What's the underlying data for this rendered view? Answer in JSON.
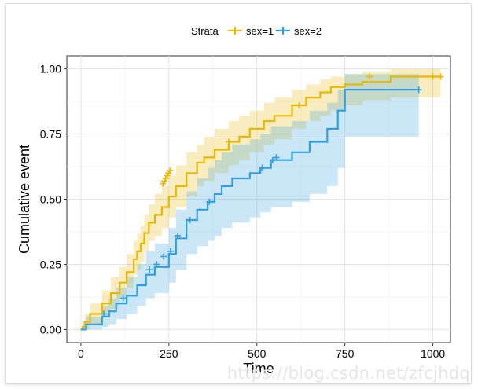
{
  "chart_data": {
    "type": "line",
    "title": "",
    "xlabel": "Time",
    "ylabel": "Cumulative event",
    "xlim": [
      -40,
      1050
    ],
    "ylim": [
      -0.05,
      1.05
    ],
    "xticks": [
      "0",
      "250",
      "500",
      "750",
      "1000"
    ],
    "xtick_values": [
      0,
      250,
      500,
      750,
      1000
    ],
    "yticks": [
      "0.00",
      "0.25",
      "0.50",
      "0.75",
      "1.00"
    ],
    "ytick_values": [
      0,
      0.25,
      0.5,
      0.75,
      1.0
    ],
    "legend": {
      "title": "Strata",
      "position": "top"
    },
    "grid": true,
    "series": [
      {
        "name": "sex=1",
        "color": "#E7B800",
        "steps": [
          [
            0,
            0
          ],
          [
            5,
            0.01
          ],
          [
            11,
            0.03
          ],
          [
            26,
            0.06
          ],
          [
            60,
            0.1
          ],
          [
            85,
            0.14
          ],
          [
            110,
            0.18
          ],
          [
            130,
            0.22
          ],
          [
            150,
            0.27
          ],
          [
            160,
            0.3
          ],
          [
            170,
            0.33
          ],
          [
            180,
            0.37
          ],
          [
            193,
            0.41
          ],
          [
            210,
            0.44
          ],
          [
            230,
            0.47
          ],
          [
            250,
            0.51
          ],
          [
            270,
            0.55
          ],
          [
            300,
            0.6
          ],
          [
            330,
            0.64
          ],
          [
            350,
            0.66
          ],
          [
            380,
            0.69
          ],
          [
            420,
            0.72
          ],
          [
            450,
            0.74
          ],
          [
            480,
            0.77
          ],
          [
            520,
            0.8
          ],
          [
            550,
            0.82
          ],
          [
            600,
            0.86
          ],
          [
            640,
            0.89
          ],
          [
            680,
            0.91
          ],
          [
            710,
            0.93
          ],
          [
            750,
            0.94
          ],
          [
            800,
            0.95
          ],
          [
            880,
            0.97
          ],
          [
            1022,
            0.97
          ]
        ],
        "lower": [
          [
            0,
            0
          ],
          [
            5,
            0
          ],
          [
            11,
            0
          ],
          [
            26,
            0.02
          ],
          [
            60,
            0.05
          ],
          [
            85,
            0.08
          ],
          [
            110,
            0.12
          ],
          [
            130,
            0.16
          ],
          [
            150,
            0.21
          ],
          [
            160,
            0.23
          ],
          [
            170,
            0.26
          ],
          [
            180,
            0.3
          ],
          [
            193,
            0.34
          ],
          [
            210,
            0.36
          ],
          [
            230,
            0.39
          ],
          [
            250,
            0.43
          ],
          [
            270,
            0.47
          ],
          [
            300,
            0.51
          ],
          [
            330,
            0.55
          ],
          [
            350,
            0.57
          ],
          [
            380,
            0.6
          ],
          [
            420,
            0.63
          ],
          [
            450,
            0.65
          ],
          [
            480,
            0.68
          ],
          [
            520,
            0.71
          ],
          [
            550,
            0.73
          ],
          [
            600,
            0.77
          ],
          [
            640,
            0.8
          ],
          [
            680,
            0.82
          ],
          [
            710,
            0.84
          ],
          [
            750,
            0.86
          ],
          [
            800,
            0.88
          ],
          [
            880,
            0.89
          ],
          [
            1022,
            0.89
          ]
        ],
        "upper": [
          [
            0,
            0
          ],
          [
            5,
            0.03
          ],
          [
            11,
            0.06
          ],
          [
            26,
            0.1
          ],
          [
            60,
            0.15
          ],
          [
            85,
            0.2
          ],
          [
            110,
            0.24
          ],
          [
            130,
            0.29
          ],
          [
            150,
            0.34
          ],
          [
            160,
            0.37
          ],
          [
            170,
            0.4
          ],
          [
            180,
            0.44
          ],
          [
            193,
            0.48
          ],
          [
            210,
            0.52
          ],
          [
            230,
            0.55
          ],
          [
            250,
            0.59
          ],
          [
            270,
            0.63
          ],
          [
            300,
            0.68
          ],
          [
            330,
            0.71
          ],
          [
            350,
            0.74
          ],
          [
            380,
            0.77
          ],
          [
            420,
            0.8
          ],
          [
            450,
            0.82
          ],
          [
            480,
            0.84
          ],
          [
            520,
            0.87
          ],
          [
            550,
            0.89
          ],
          [
            600,
            0.92
          ],
          [
            640,
            0.94
          ],
          [
            680,
            0.96
          ],
          [
            710,
            0.97
          ],
          [
            750,
            0.98
          ],
          [
            800,
            0.99
          ],
          [
            880,
            1.0
          ],
          [
            1022,
            1.0
          ]
        ],
        "censors": [
          [
            233,
            0.56
          ],
          [
            237,
            0.57
          ],
          [
            241,
            0.58
          ],
          [
            245,
            0.59
          ],
          [
            249,
            0.6
          ],
          [
            253,
            0.61
          ],
          [
            420,
            0.72
          ],
          [
            620,
            0.86
          ],
          [
            820,
            0.97
          ],
          [
            1000,
            0.97
          ],
          [
            1022,
            0.97
          ]
        ]
      },
      {
        "name": "sex=2",
        "color": "#2E9FDF",
        "steps": [
          [
            0,
            0
          ],
          [
            15,
            0.02
          ],
          [
            60,
            0.05
          ],
          [
            80,
            0.07
          ],
          [
            100,
            0.1
          ],
          [
            130,
            0.13
          ],
          [
            160,
            0.17
          ],
          [
            185,
            0.21
          ],
          [
            210,
            0.24
          ],
          [
            250,
            0.29
          ],
          [
            270,
            0.35
          ],
          [
            300,
            0.42
          ],
          [
            330,
            0.46
          ],
          [
            360,
            0.49
          ],
          [
            380,
            0.52
          ],
          [
            400,
            0.55
          ],
          [
            430,
            0.58
          ],
          [
            480,
            0.6
          ],
          [
            510,
            0.62
          ],
          [
            540,
            0.65
          ],
          [
            600,
            0.68
          ],
          [
            650,
            0.72
          ],
          [
            700,
            0.77
          ],
          [
            730,
            0.84
          ],
          [
            750,
            0.92
          ],
          [
            960,
            0.92
          ]
        ],
        "lower": [
          [
            0,
            0
          ],
          [
            15,
            0
          ],
          [
            60,
            0.01
          ],
          [
            80,
            0.02
          ],
          [
            100,
            0.04
          ],
          [
            130,
            0.06
          ],
          [
            160,
            0.09
          ],
          [
            185,
            0.12
          ],
          [
            210,
            0.14
          ],
          [
            250,
            0.18
          ],
          [
            270,
            0.23
          ],
          [
            300,
            0.29
          ],
          [
            330,
            0.32
          ],
          [
            360,
            0.34
          ],
          [
            380,
            0.36
          ],
          [
            400,
            0.39
          ],
          [
            430,
            0.41
          ],
          [
            480,
            0.43
          ],
          [
            510,
            0.45
          ],
          [
            540,
            0.47
          ],
          [
            600,
            0.49
          ],
          [
            650,
            0.52
          ],
          [
            700,
            0.55
          ],
          [
            730,
            0.62
          ],
          [
            750,
            0.74
          ],
          [
            960,
            0.74
          ]
        ],
        "upper": [
          [
            0,
            0
          ],
          [
            15,
            0.05
          ],
          [
            60,
            0.09
          ],
          [
            80,
            0.12
          ],
          [
            100,
            0.16
          ],
          [
            130,
            0.2
          ],
          [
            160,
            0.25
          ],
          [
            185,
            0.3
          ],
          [
            210,
            0.33
          ],
          [
            250,
            0.39
          ],
          [
            270,
            0.46
          ],
          [
            300,
            0.53
          ],
          [
            330,
            0.58
          ],
          [
            360,
            0.62
          ],
          [
            380,
            0.65
          ],
          [
            400,
            0.68
          ],
          [
            430,
            0.71
          ],
          [
            480,
            0.73
          ],
          [
            510,
            0.75
          ],
          [
            540,
            0.78
          ],
          [
            600,
            0.8
          ],
          [
            650,
            0.84
          ],
          [
            700,
            0.87
          ],
          [
            730,
            0.92
          ],
          [
            750,
            0.98
          ],
          [
            960,
            0.98
          ]
        ],
        "censors": [
          [
            65,
            0.06
          ],
          [
            120,
            0.12
          ],
          [
            195,
            0.23
          ],
          [
            215,
            0.25
          ],
          [
            235,
            0.28
          ],
          [
            255,
            0.3
          ],
          [
            275,
            0.36
          ],
          [
            310,
            0.42
          ],
          [
            365,
            0.49
          ],
          [
            515,
            0.62
          ],
          [
            545,
            0.65
          ],
          [
            555,
            0.66
          ],
          [
            960,
            0.92
          ]
        ]
      }
    ]
  },
  "watermark": "https://blog.csdn.net/zfcjhdq"
}
